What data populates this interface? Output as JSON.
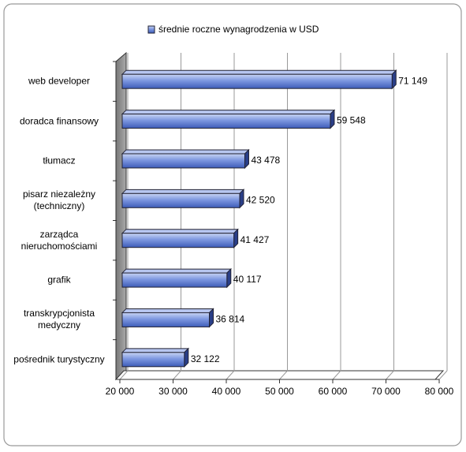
{
  "chart_data": {
    "type": "bar",
    "orientation": "horizontal",
    "categories": [
      "web developer",
      "doradca finansowy",
      "tłumacz",
      "pisarz niezależny (techniczny)",
      "zarządca nieruchomościami",
      "grafik",
      "transkrypcjonista medyczny",
      "pośrednik turystyczny"
    ],
    "series": [
      {
        "name": "średnie roczne wynagrodzenia w USD",
        "color": "#5f7fd0",
        "values": [
          71149,
          59548,
          43478,
          42520,
          41427,
          40117,
          36814,
          32122
        ],
        "value_labels": [
          "71 149",
          "59 548",
          "43 478",
          "42 520",
          "41 427",
          "40 117",
          "36 814",
          "32 122"
        ]
      }
    ],
    "xlim": [
      20000,
      80000
    ],
    "xticks": [
      {
        "value": 20000,
        "label": "20 000"
      },
      {
        "value": 30000,
        "label": "30 000"
      },
      {
        "value": 40000,
        "label": "40 000"
      },
      {
        "value": 50000,
        "label": "50 000"
      },
      {
        "value": 60000,
        "label": "60 000"
      },
      {
        "value": 70000,
        "label": "70 000"
      },
      {
        "value": 80000,
        "label": "80 000"
      }
    ],
    "grid": true,
    "legend": "top"
  }
}
